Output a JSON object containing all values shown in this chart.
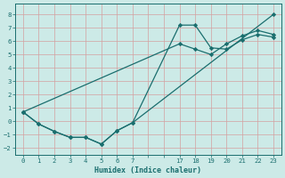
{
  "title": "",
  "xlabel": "Humidex (Indice chaleur)",
  "ylabel": "",
  "bg_color": "#cceae7",
  "grid_color": "#d4a0a0",
  "line_color": "#1a6e6e",
  "ylim": [
    -2.5,
    8.8
  ],
  "yticks": [
    -2,
    -1,
    0,
    1,
    2,
    3,
    4,
    5,
    6,
    7,
    8
  ],
  "xtick_labels": [
    "0",
    "1",
    "2",
    "3",
    "4",
    "5",
    "6",
    "7",
    "",
    "",
    "17",
    "18",
    "19",
    "20",
    "21",
    "22",
    "23"
  ],
  "line1_xi": [
    0,
    1,
    2,
    3,
    4,
    5,
    6,
    7,
    16
  ],
  "line1_y": [
    0.7,
    -0.2,
    -0.75,
    -1.2,
    -1.2,
    -1.7,
    -0.7,
    -0.1,
    8.0
  ],
  "line2_xi": [
    0,
    1,
    2,
    3,
    4,
    5,
    6,
    7,
    10,
    11,
    12,
    13,
    14,
    15,
    16
  ],
  "line2_y": [
    0.7,
    -0.2,
    -0.75,
    -1.2,
    -1.2,
    -1.7,
    -0.7,
    -0.1,
    7.2,
    7.2,
    5.5,
    5.4,
    6.1,
    6.5,
    6.3
  ],
  "line3_xi": [
    0,
    10,
    11,
    12,
    13,
    14,
    15,
    16
  ],
  "line3_y": [
    0.7,
    5.8,
    5.4,
    5.0,
    5.8,
    6.4,
    6.8,
    6.5
  ],
  "figsize": [
    3.2,
    2.0
  ],
  "dpi": 100
}
